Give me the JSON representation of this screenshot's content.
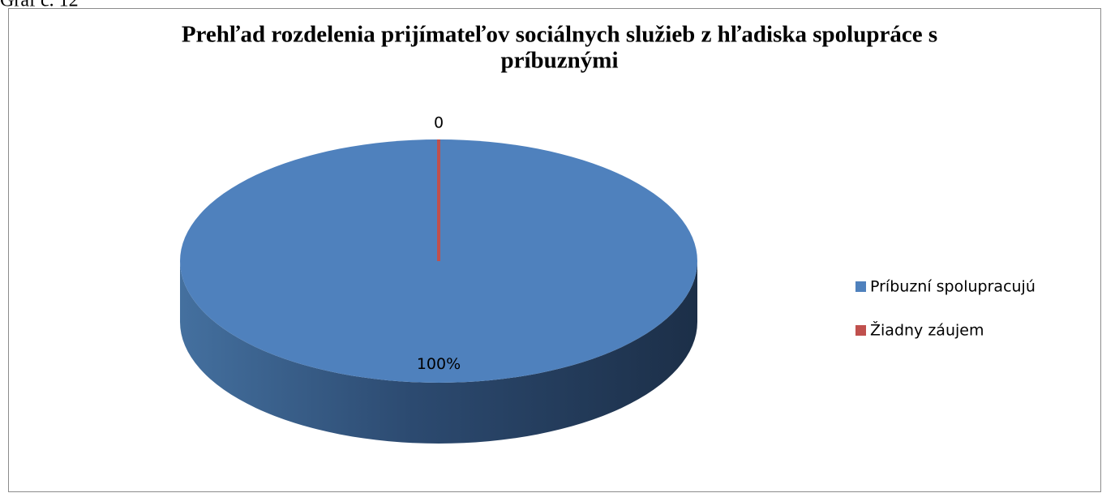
{
  "caption": "Graf č. 12",
  "chart_data": {
    "type": "pie3d",
    "title": [
      "Prehľad rozdelenia prijímateľov sociálnych služieb z hľadiska spolupráce s",
      "príbuznými"
    ],
    "categories": [
      "Príbuzní spolupracujú",
      "Žiadny záujem"
    ],
    "values": [
      100,
      0
    ],
    "value_labels": [
      "100%",
      "0"
    ],
    "colors": [
      "#4f81bd",
      "#c0504d"
    ],
    "legend": "right"
  }
}
